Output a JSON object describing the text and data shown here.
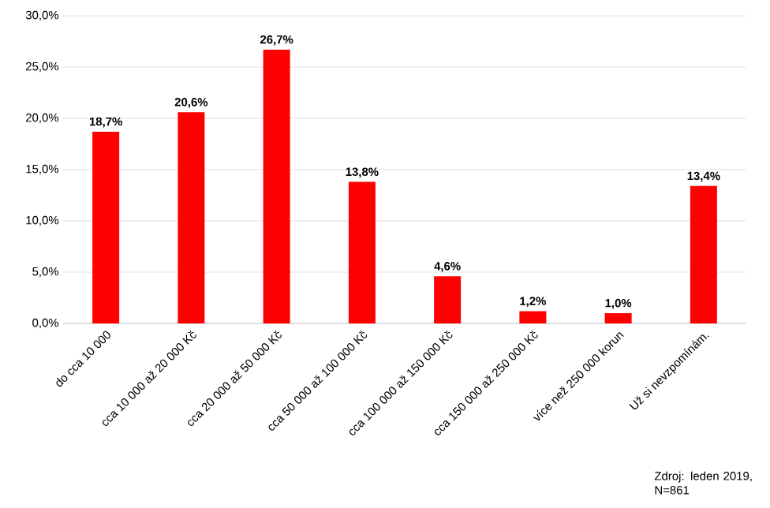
{
  "chart_data": {
    "type": "bar",
    "categories": [
      "do cca 10 000",
      "cca 10 000 až 20 000 Kč",
      "cca 20 000 až 50 000 Kč",
      "cca 50 000 až 100 000 Kč",
      "cca 100 000 až 150 000 Kč",
      "cca 150 000 až 250 000 Kč",
      "více než 250 000 korun",
      "Už si nevzpomínám."
    ],
    "values": [
      18.7,
      20.6,
      26.7,
      13.8,
      4.6,
      1.2,
      1.0,
      13.4
    ],
    "value_labels": [
      "18,7%",
      "20,6%",
      "26,7%",
      "13,8%",
      "4,6%",
      "1,2%",
      "1,0%",
      "13,4%"
    ],
    "color": "#ff0000",
    "ylim": [
      0,
      30
    ],
    "yticks": [
      {
        "value": 0,
        "label": "0,0%"
      },
      {
        "value": 5,
        "label": "5,0%"
      },
      {
        "value": 10,
        "label": "10,0%"
      },
      {
        "value": 15,
        "label": "15,0%"
      },
      {
        "value": 20,
        "label": "20,0%"
      },
      {
        "value": 25,
        "label": "25,0%"
      },
      {
        "value": 30,
        "label": "30,0%"
      }
    ],
    "grid": "y",
    "annotations": [
      "Zdroj: leden 2019, N=861"
    ]
  }
}
